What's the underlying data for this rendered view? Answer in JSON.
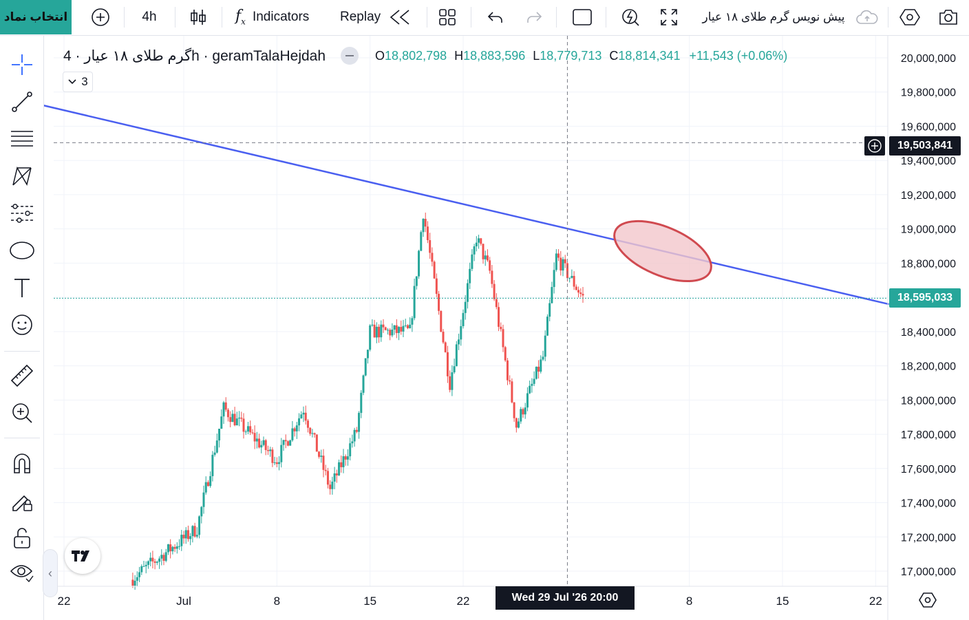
{
  "toolbar": {
    "symbol_button": "انتخاب نماد",
    "interval": "4h",
    "indicators_label": "Indicators",
    "replay_label": "Replay",
    "symbol_description": "پیش نویس گرم طلای ۱۸ عیار",
    "icons": [
      "plus-circle-icon",
      "candles-icon",
      "fx-icon",
      "rewind-icon",
      "layout-grid-icon",
      "undo-icon",
      "redo-icon",
      "rectangle-icon",
      "alert-icon",
      "fullscreen-icon",
      "cloud-icon",
      "settings-icon",
      "camera-icon"
    ]
  },
  "left_tools": [
    "crosshair-icon",
    "trendline-icon",
    "fib-lines-icon",
    "pattern-icon",
    "prediction-icon",
    "ellipse-shape-icon",
    "text-icon",
    "emoji-icon",
    "ruler-icon",
    "zoom-in-icon",
    "magnet-icon",
    "lock-pen-icon",
    "unlock-icon",
    "eye-icon"
  ],
  "legend": {
    "title": "گرم طلای ۱۸ عیار · 4h · geramTalaHejdah",
    "o_label": "O",
    "o_value": "18,802,798",
    "h_label": "H",
    "h_value": "18,883,596",
    "l_label": "L",
    "l_value": "18,779,713",
    "c_label": "C",
    "c_value": "18,814,341",
    "change": "+11,543 (+0.06%)",
    "indicators_count": "3"
  },
  "price_axis": {
    "labels": [
      "20,000,000",
      "19,800,000",
      "19,600,000",
      "19,400,000",
      "19,200,000",
      "19,000,000",
      "18,800,000",
      "18,600,000",
      "18,400,000",
      "18,200,000",
      "18,000,000",
      "17,800,000",
      "17,600,000",
      "17,400,000",
      "17,200,000",
      "17,000,000"
    ],
    "crosshair_price": "19,503,841",
    "last_price": "18,595,033",
    "last_price_color": "#26a69a"
  },
  "time_axis": {
    "labels": [
      "22",
      "Jul",
      "8",
      "15",
      "22",
      "8",
      "15",
      "22"
    ],
    "crosshair_time": "Wed 29 Jul '26   20:00"
  },
  "colors": {
    "up": "#26a69a",
    "down": "#ef5350",
    "trendline": "#4a5ff0",
    "ellipse_stroke": "#d04a50",
    "ellipse_fill": "#f3c7cc"
  },
  "chart_data": {
    "type": "candlestick",
    "interval": "4h",
    "ylim": [
      16940000,
      20080000
    ],
    "x_ticks": [
      "22",
      "Jul",
      "8",
      "15",
      "22",
      "29",
      "8",
      "15",
      "22"
    ],
    "trendline": {
      "from": [
        "2026-06-20",
        19730000
      ],
      "to": [
        "2026-08-23",
        18560000
      ]
    },
    "ellipse_annotation": {
      "center": [
        "2026-08-06",
        18870000
      ]
    },
    "segments": [
      {
        "start": "2026-06-27",
        "end": "2026-07-02",
        "from": 16950000,
        "to": 17250000
      },
      {
        "start": "2026-07-02",
        "end": "2026-07-04",
        "from": 17250000,
        "to": 17950000
      },
      {
        "start": "2026-07-04",
        "end": "2026-07-08",
        "from": 17950000,
        "to": 17650000
      },
      {
        "start": "2026-07-08",
        "end": "2026-07-10",
        "from": 17650000,
        "to": 17950000
      },
      {
        "start": "2026-07-10",
        "end": "2026-07-12",
        "from": 17950000,
        "to": 17480000
      },
      {
        "start": "2026-07-12",
        "end": "2026-07-14",
        "from": 17480000,
        "to": 17820000
      },
      {
        "start": "2026-07-14",
        "end": "2026-07-15",
        "from": 17820000,
        "to": 18400000
      },
      {
        "start": "2026-07-15",
        "end": "2026-07-18",
        "from": 18400000,
        "to": 18400000
      },
      {
        "start": "2026-07-18",
        "end": "2026-07-19",
        "from": 18400000,
        "to": 19100000
      },
      {
        "start": "2026-07-19",
        "end": "2026-07-21",
        "from": 19100000,
        "to": 18100000
      },
      {
        "start": "2026-07-21",
        "end": "2026-07-23",
        "from": 18100000,
        "to": 18950000
      },
      {
        "start": "2026-07-23",
        "end": "2026-07-24",
        "from": 18950000,
        "to": 18750000
      },
      {
        "start": "2026-07-24",
        "end": "2026-07-26",
        "from": 18750000,
        "to": 17850000
      },
      {
        "start": "2026-07-26",
        "end": "2026-07-28",
        "from": 17850000,
        "to": 18250000
      },
      {
        "start": "2026-07-28",
        "end": "2026-07-29",
        "from": 18250000,
        "to": 18840000
      },
      {
        "start": "2026-07-29",
        "end": "2026-07-31",
        "from": 18840000,
        "to": 18600000
      }
    ]
  }
}
